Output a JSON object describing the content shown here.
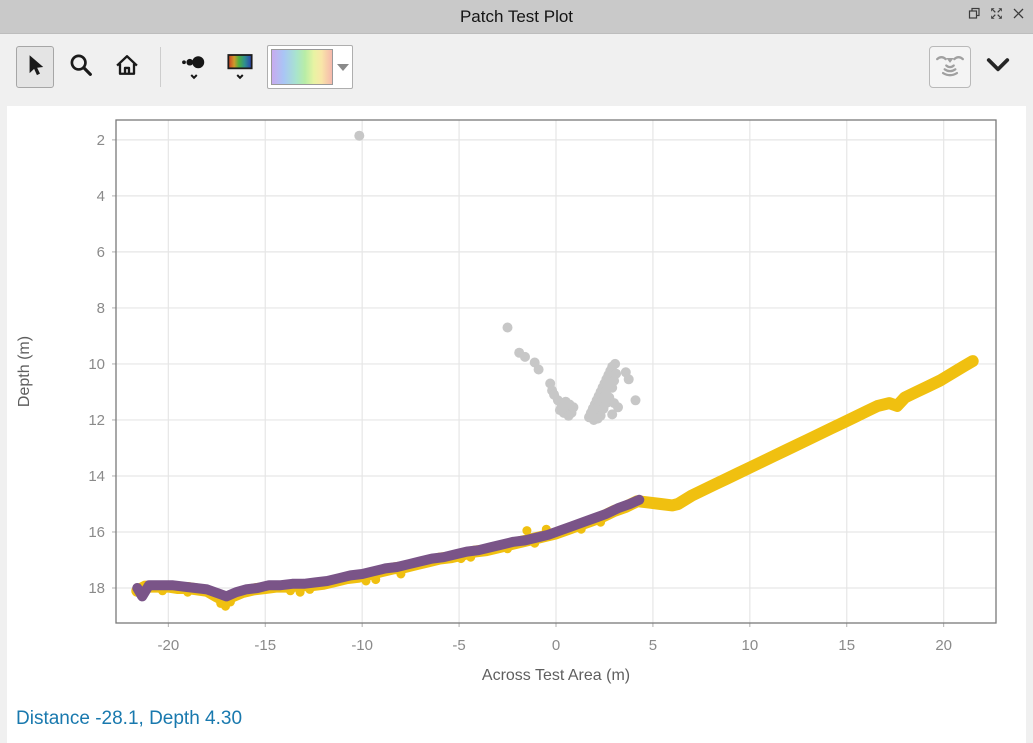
{
  "window": {
    "title": "Patch Test Plot",
    "controls": [
      {
        "id": "float",
        "icon": "restore-window-icon"
      },
      {
        "id": "maximize",
        "icon": "expand-window-icon"
      },
      {
        "id": "close",
        "icon": "close-icon"
      }
    ]
  },
  "toolbar": {
    "buttons": [
      {
        "id": "pointer",
        "icon": "cursor-icon",
        "active": true
      },
      {
        "id": "zoom",
        "icon": "magnifier-icon",
        "active": false
      },
      {
        "id": "home",
        "icon": "home-icon",
        "active": false
      },
      {
        "id": "point-size",
        "icon": "point-size-icon",
        "has_dropdown": true
      },
      {
        "id": "color-ramp",
        "icon": "color-ramp-icon",
        "has_dropdown": true
      }
    ],
    "colormap_selector": {
      "value": "rainbow-pastel-gradient"
    },
    "right_buttons": [
      {
        "id": "sounder",
        "icon": "sonar-icon",
        "disabled": true
      },
      {
        "id": "expand-menu",
        "icon": "chevron-down-icon"
      }
    ]
  },
  "status_bar": {
    "text": "Distance -28.1, Depth 4.30",
    "color": "#1979ae"
  },
  "chart_data": {
    "type": "scatter",
    "title": "",
    "xlabel": "Across Test Area (m)",
    "ylabel": "Depth (m)",
    "xlim": [
      -22.7,
      22.7
    ],
    "ylim": [
      1.29,
      19.25
    ],
    "y_axis_inverted": true,
    "x_ticks": [
      -20,
      -15,
      -10,
      -5,
      0,
      5,
      10,
      15,
      20
    ],
    "y_ticks": [
      2,
      4,
      6,
      8,
      10,
      12,
      14,
      16,
      18
    ],
    "grid": true,
    "legend": false,
    "colors": {
      "gray": "#c7c7c7",
      "yellow": "#f0c010",
      "purple": "#7a5488",
      "grid": "#e6e6e6",
      "frame": "#7a7a7a",
      "tick_text": "#8a8a8a",
      "axis_text": "#5f5f5f"
    },
    "series": [
      {
        "name": "gray-rejected-points",
        "color": "#c7c7c7",
        "style": "points",
        "size": 5,
        "points": [
          [
            -10.15,
            1.85
          ],
          [
            -2.5,
            8.7
          ],
          [
            -1.9,
            9.6
          ],
          [
            -1.6,
            9.75
          ],
          [
            -1.1,
            9.95
          ],
          [
            -0.9,
            10.2
          ],
          [
            -0.3,
            10.7
          ],
          [
            -0.2,
            10.95
          ],
          [
            -0.1,
            11.1
          ],
          [
            0.1,
            11.3
          ],
          [
            0.3,
            11.5
          ],
          [
            0.5,
            11.35
          ],
          [
            0.6,
            11.6
          ],
          [
            0.8,
            11.75
          ],
          [
            0.4,
            11.75
          ],
          [
            0.2,
            11.65
          ],
          [
            0.7,
            11.45
          ],
          [
            0.9,
            11.55
          ],
          [
            0.65,
            11.85
          ],
          [
            0.35,
            11.45
          ],
          [
            1.7,
            11.9
          ],
          [
            1.8,
            11.75
          ],
          [
            1.9,
            11.6
          ],
          [
            2.0,
            11.45
          ],
          [
            2.1,
            11.3
          ],
          [
            2.2,
            11.15
          ],
          [
            2.3,
            11.0
          ],
          [
            2.4,
            10.85
          ],
          [
            2.5,
            10.7
          ],
          [
            2.6,
            10.55
          ],
          [
            2.7,
            10.4
          ],
          [
            2.8,
            10.25
          ],
          [
            2.9,
            10.1
          ],
          [
            3.05,
            10.0
          ],
          [
            2.05,
            11.7
          ],
          [
            2.2,
            11.5
          ],
          [
            2.35,
            11.35
          ],
          [
            2.5,
            11.15
          ],
          [
            2.6,
            10.95
          ],
          [
            2.75,
            10.7
          ],
          [
            2.85,
            10.5
          ],
          [
            2.3,
            11.85
          ],
          [
            2.45,
            11.6
          ],
          [
            2.6,
            11.4
          ],
          [
            2.75,
            11.2
          ],
          [
            2.9,
            10.85
          ],
          [
            3.0,
            10.6
          ],
          [
            3.1,
            10.35
          ],
          [
            3.6,
            10.3
          ],
          [
            3.75,
            10.55
          ],
          [
            4.1,
            11.3
          ],
          [
            3.0,
            11.4
          ],
          [
            3.2,
            11.55
          ],
          [
            2.9,
            11.8
          ],
          [
            1.95,
            12.0
          ],
          [
            2.15,
            11.95
          ]
        ]
      },
      {
        "name": "yellow-series-band",
        "color": "#f0c010",
        "style": "band",
        "width": 12,
        "points": [
          [
            -21.6,
            18.1
          ],
          [
            -21.2,
            17.95
          ],
          [
            -20.5,
            17.95
          ],
          [
            -20,
            17.95
          ],
          [
            -19.5,
            18.0
          ],
          [
            -19,
            18.0
          ],
          [
            -18.5,
            18.05
          ],
          [
            -18,
            18.1
          ],
          [
            -17.5,
            18.3
          ],
          [
            -17.1,
            18.45
          ],
          [
            -16.7,
            18.3
          ],
          [
            -16.2,
            18.15
          ],
          [
            -15.6,
            18.05
          ],
          [
            -15,
            18.0
          ],
          [
            -14.4,
            17.95
          ],
          [
            -13.8,
            17.95
          ],
          [
            -13.2,
            17.9
          ],
          [
            -12.6,
            17.9
          ],
          [
            -12,
            17.85
          ],
          [
            -11.4,
            17.75
          ],
          [
            -10.8,
            17.65
          ],
          [
            -10.2,
            17.6
          ],
          [
            -9.6,
            17.5
          ],
          [
            -9,
            17.4
          ],
          [
            -8.4,
            17.3
          ],
          [
            -7.8,
            17.25
          ],
          [
            -7.2,
            17.15
          ],
          [
            -6.6,
            17.05
          ],
          [
            -6,
            16.95
          ],
          [
            -5.4,
            16.9
          ],
          [
            -4.8,
            16.8
          ],
          [
            -4.2,
            16.7
          ],
          [
            -3.6,
            16.65
          ],
          [
            -3,
            16.55
          ],
          [
            -2.4,
            16.45
          ],
          [
            -1.8,
            16.35
          ],
          [
            -1.2,
            16.25
          ],
          [
            -0.6,
            16.15
          ],
          [
            0,
            16.05
          ],
          [
            0.6,
            15.9
          ],
          [
            1.2,
            15.75
          ],
          [
            1.8,
            15.6
          ],
          [
            2.4,
            15.45
          ],
          [
            3,
            15.25
          ],
          [
            3.6,
            15.1
          ],
          [
            4.2,
            14.9
          ],
          [
            4.8,
            14.95
          ],
          [
            5.4,
            15.0
          ],
          [
            6,
            15.05
          ],
          [
            6.3,
            15.0
          ],
          [
            7,
            14.7
          ],
          [
            7.6,
            14.5
          ],
          [
            8.2,
            14.3
          ],
          [
            8.8,
            14.1
          ],
          [
            9.4,
            13.9
          ],
          [
            10,
            13.7
          ],
          [
            10.6,
            13.5
          ],
          [
            11.2,
            13.3
          ],
          [
            11.8,
            13.1
          ],
          [
            12.4,
            12.9
          ],
          [
            13,
            12.7
          ],
          [
            13.6,
            12.5
          ],
          [
            14.2,
            12.3
          ],
          [
            14.8,
            12.1
          ],
          [
            15.4,
            11.9
          ],
          [
            16,
            11.7
          ],
          [
            16.6,
            11.5
          ],
          [
            17.2,
            11.4
          ],
          [
            17.6,
            11.5
          ],
          [
            18,
            11.2
          ],
          [
            18.6,
            11.0
          ],
          [
            19.2,
            10.8
          ],
          [
            19.8,
            10.6
          ],
          [
            20.4,
            10.35
          ],
          [
            21,
            10.1
          ],
          [
            21.5,
            9.9
          ]
        ]
      },
      {
        "name": "yellow-series-fringe-points",
        "color": "#f0c010",
        "style": "points",
        "size": 4.5,
        "points": [
          [
            -20.3,
            18.1
          ],
          [
            -19.0,
            18.15
          ],
          [
            -17.3,
            18.55
          ],
          [
            -17.05,
            18.65
          ],
          [
            -16.8,
            18.5
          ],
          [
            -13.7,
            18.1
          ],
          [
            -13.2,
            18.15
          ],
          [
            -12.7,
            18.05
          ],
          [
            -9.8,
            17.75
          ],
          [
            -9.3,
            17.7
          ],
          [
            -8.0,
            17.5
          ],
          [
            -4.9,
            16.95
          ],
          [
            -4.4,
            16.9
          ],
          [
            -2.5,
            16.6
          ],
          [
            -1.1,
            16.4
          ],
          [
            -1.5,
            15.95
          ],
          [
            -0.5,
            15.9
          ],
          [
            1.3,
            15.9
          ],
          [
            2.3,
            15.65
          ]
        ]
      },
      {
        "name": "purple-series-band",
        "color": "#7a5488",
        "style": "band",
        "width": 10,
        "points": [
          [
            -21.6,
            18.0
          ],
          [
            -21.35,
            18.3
          ],
          [
            -21,
            17.9
          ],
          [
            -20.4,
            17.9
          ],
          [
            -19.8,
            17.9
          ],
          [
            -19.2,
            17.95
          ],
          [
            -18.6,
            18.0
          ],
          [
            -18,
            18.05
          ],
          [
            -17.4,
            18.2
          ],
          [
            -17,
            18.3
          ],
          [
            -16.5,
            18.15
          ],
          [
            -16,
            18.05
          ],
          [
            -15.4,
            18.0
          ],
          [
            -14.8,
            17.9
          ],
          [
            -14.2,
            17.9
          ],
          [
            -13.6,
            17.85
          ],
          [
            -13,
            17.85
          ],
          [
            -12.4,
            17.8
          ],
          [
            -11.8,
            17.75
          ],
          [
            -11.2,
            17.65
          ],
          [
            -10.6,
            17.55
          ],
          [
            -10,
            17.5
          ],
          [
            -9.4,
            17.4
          ],
          [
            -8.8,
            17.3
          ],
          [
            -8.2,
            17.25
          ],
          [
            -7.6,
            17.15
          ],
          [
            -7,
            17.05
          ],
          [
            -6.4,
            16.95
          ],
          [
            -5.8,
            16.9
          ],
          [
            -5.2,
            16.8
          ],
          [
            -4.6,
            16.7
          ],
          [
            -4,
            16.65
          ],
          [
            -3.4,
            16.55
          ],
          [
            -2.8,
            16.45
          ],
          [
            -2.2,
            16.35
          ],
          [
            -1.6,
            16.3
          ],
          [
            -1,
            16.2
          ],
          [
            -0.4,
            16.1
          ],
          [
            0.2,
            15.95
          ],
          [
            0.8,
            15.8
          ],
          [
            1.4,
            15.65
          ],
          [
            2,
            15.5
          ],
          [
            2.6,
            15.35
          ],
          [
            3.2,
            15.15
          ],
          [
            3.8,
            15.0
          ],
          [
            4.3,
            14.85
          ]
        ]
      }
    ]
  }
}
